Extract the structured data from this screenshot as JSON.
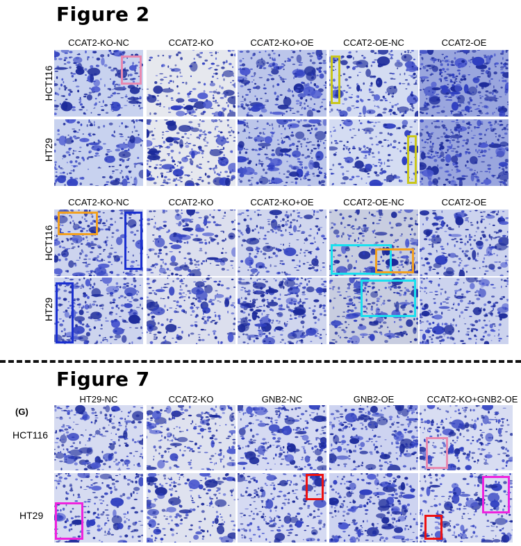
{
  "figures": [
    {
      "title": "Figure 2"
    },
    {
      "title": "Figure 7"
    }
  ],
  "blocks": [
    {
      "columns": [
        "CCAT2-KO-NC",
        "CCAT2-KO",
        "CCAT2-KO+OE",
        "CCAT2-OE-NC",
        "CCAT2-OE"
      ],
      "rows": [
        "HCT116",
        "HT29"
      ]
    },
    {
      "columns": [
        "CCAT2-KO-NC",
        "CCAT2-KO",
        "CCAT2-KO+OE",
        "CCAT2-OE-NC",
        "CCAT2-OE"
      ],
      "rows": [
        "HCT116",
        "HT29"
      ]
    },
    {
      "panel_label": "(G)",
      "columns": [
        "HT29-NC",
        "CCAT2-KO",
        "GNB2-NC",
        "GNB2-OE",
        "CCAT2-KO+GNB2-OE"
      ],
      "rows": [
        "HCT116",
        "HT29"
      ]
    }
  ],
  "highlight_colors": {
    "pink": "#e889b0",
    "yellow": "#c9c61a",
    "orange": "#f2a020",
    "blue": "#1a2fd0",
    "cyan": "#19e0ef",
    "red": "#ee1111",
    "magenta": "#ee22dd"
  }
}
